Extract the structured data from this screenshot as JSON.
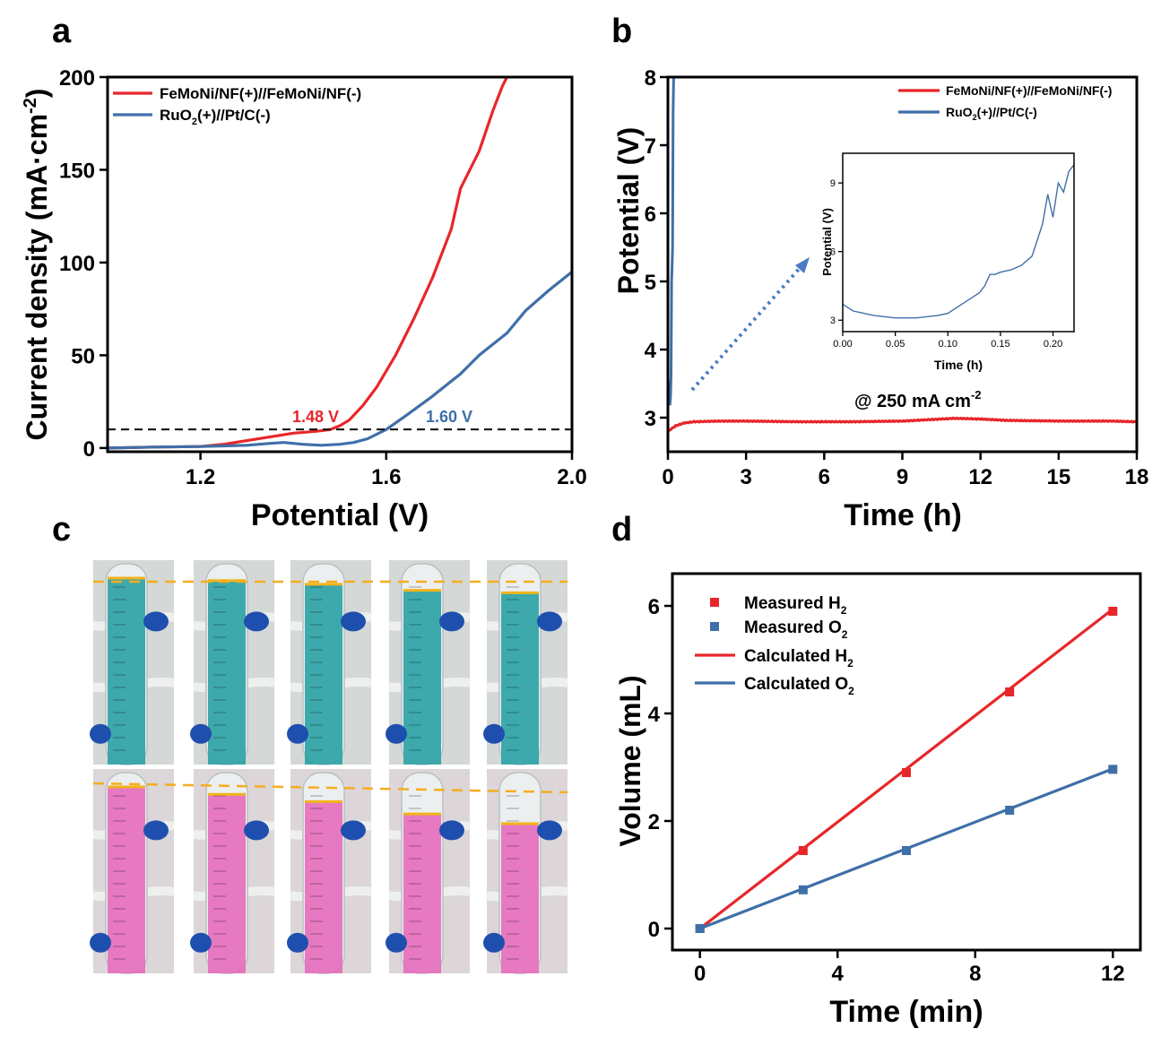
{
  "panels": {
    "a": "a",
    "b": "b",
    "c": "c",
    "d": "d"
  },
  "chart_data": [
    {
      "panel": "a",
      "type": "line",
      "xlabel": "Potential (V)",
      "ylabel": "Current density (mA·cm-2)",
      "ylabel_main": "Current density (mA·cm",
      "ylabel_sup": "-2",
      "ylabel_close": ")",
      "xlim": [
        1.0,
        2.0
      ],
      "ylim": [
        -2,
        200
      ],
      "xticks": [
        1.2,
        1.6,
        2.0
      ],
      "xtick_labels": [
        "1.2",
        "1.6",
        "2.0"
      ],
      "yticks": [
        0,
        50,
        100,
        150,
        200
      ],
      "ytick_labels": [
        "0",
        "50",
        "100",
        "150",
        "200"
      ],
      "reference_line": 10,
      "annotations": [
        {
          "text": "1.48 V",
          "x": 1.48,
          "y": 10,
          "color": "#e8262a"
        },
        {
          "text": "1.60 V",
          "x": 1.6,
          "y": 10,
          "color": "#3f6fa8"
        }
      ],
      "series": [
        {
          "name": "FeMoNi/NF(+)//FeMoNi/NF(-)",
          "legend_text": "FeMoNi/NF(+)//FeMoNi/NF(-)",
          "color": "#e8262a",
          "x": [
            1.0,
            1.1,
            1.2,
            1.25,
            1.3,
            1.35,
            1.4,
            1.45,
            1.48,
            1.5,
            1.52,
            1.55,
            1.58,
            1.62,
            1.66,
            1.7,
            1.74,
            1.76,
            1.77,
            1.8,
            1.83,
            1.85,
            1.86
          ],
          "y": [
            0,
            0.5,
            0.8,
            2,
            4,
            6,
            8,
            9,
            10,
            12,
            15,
            23,
            33,
            50,
            70,
            92,
            118,
            140,
            145,
            160,
            182,
            195,
            200
          ]
        },
        {
          "name": "RuO2(+)//Pt/C(-)",
          "legend_main": "RuO",
          "legend_sub": "2",
          "legend_rest": "(+)//Pt/C(-)",
          "color": "#3f6fa8",
          "x": [
            1.0,
            1.1,
            1.2,
            1.3,
            1.35,
            1.38,
            1.42,
            1.46,
            1.5,
            1.53,
            1.56,
            1.6,
            1.64,
            1.7,
            1.76,
            1.8,
            1.86,
            1.9,
            1.95,
            2.0
          ],
          "y": [
            0,
            0.5,
            0.8,
            1.5,
            2.5,
            3,
            2,
            1.5,
            2,
            3,
            5,
            10,
            17,
            28,
            40,
            50,
            62,
            74,
            85,
            95
          ]
        }
      ]
    },
    {
      "panel": "b",
      "type": "line",
      "xlabel": "Time (h)",
      "ylabel": "Potential (V)",
      "xlim": [
        0,
        18
      ],
      "ylim": [
        2.5,
        8
      ],
      "xticks": [
        0,
        3,
        6,
        9,
        12,
        15,
        18
      ],
      "xtick_labels": [
        "0",
        "3",
        "6",
        "9",
        "12",
        "15",
        "18"
      ],
      "yticks": [
        3,
        4,
        5,
        6,
        7,
        8
      ],
      "ytick_labels": [
        "3",
        "4",
        "5",
        "6",
        "7",
        "8"
      ],
      "annotation_main": "@ 250 mA cm",
      "annotation_sup": "-2",
      "series": [
        {
          "name": "FeMoNi/NF(+)//FeMoNi/NF(-)",
          "legend_text": "FeMoNi/NF(+)//FeMoNi/NF(-)",
          "color": "#e8262a",
          "x": [
            0,
            0.3,
            0.6,
            1,
            2,
            3,
            5,
            7,
            9,
            10,
            11,
            12,
            13,
            15,
            17,
            18
          ],
          "y": [
            2.8,
            2.88,
            2.92,
            2.94,
            2.95,
            2.95,
            2.94,
            2.94,
            2.95,
            2.97,
            2.99,
            2.98,
            2.96,
            2.95,
            2.95,
            2.94
          ]
        },
        {
          "name": "RuO2(+)//Pt/C(-)",
          "legend_main": "RuO",
          "legend_sub": "2",
          "legend_rest": "(+)//Pt/C(-)",
          "color": "#3f6fa8",
          "x": [
            0.0,
            0.02,
            0.05,
            0.08,
            0.1,
            0.12,
            0.14,
            0.16,
            0.18,
            0.2,
            0.22
          ],
          "y": [
            3.6,
            3.4,
            3.2,
            3.2,
            3.3,
            3.6,
            5.0,
            5.2,
            5.5,
            7.5,
            8.0
          ]
        }
      ],
      "inset": {
        "xlabel": "Time (h)",
        "ylabel": "Potential (V)",
        "xlim": [
          0,
          0.22
        ],
        "ylim": [
          2.5,
          10.3
        ],
        "xticks": [
          0,
          0.05,
          0.1,
          0.15,
          0.2
        ],
        "xtick_labels": [
          "0.00",
          "0.05",
          "0.10",
          "0.15",
          "0.20"
        ],
        "yticks": [
          3,
          6,
          9
        ],
        "ytick_labels": [
          "3",
          "6",
          "9"
        ],
        "color": "#3f6fa8",
        "x": [
          0.0,
          0.01,
          0.03,
          0.05,
          0.07,
          0.09,
          0.1,
          0.11,
          0.12,
          0.13,
          0.135,
          0.14,
          0.145,
          0.15,
          0.16,
          0.17,
          0.18,
          0.185,
          0.19,
          0.195,
          0.2,
          0.205,
          0.21,
          0.215,
          0.22
        ],
        "y": [
          3.7,
          3.4,
          3.2,
          3.1,
          3.1,
          3.2,
          3.3,
          3.6,
          3.9,
          4.2,
          4.5,
          5.0,
          5.0,
          5.1,
          5.2,
          5.4,
          5.8,
          6.5,
          7.2,
          8.5,
          7.5,
          9.0,
          8.6,
          9.5,
          9.8
        ]
      }
    },
    {
      "panel": "d",
      "type": "scatter",
      "xlabel": "Time (min)",
      "ylabel": "Volume (mL)",
      "xlim": [
        -0.8,
        12.8
      ],
      "ylim": [
        -0.4,
        6.6
      ],
      "xticks": [
        0,
        4,
        8,
        12
      ],
      "xtick_labels": [
        "0",
        "4",
        "8",
        "12"
      ],
      "yticks": [
        0,
        2,
        4,
        6
      ],
      "ytick_labels": [
        "0",
        "2",
        "4",
        "6"
      ],
      "series": [
        {
          "name": "Measured H2",
          "legend_main": "Measured H",
          "legend_sub": "2",
          "kind": "marker",
          "color": "#e8262a",
          "x": [
            0,
            3,
            6,
            9,
            12
          ],
          "y": [
            0,
            1.45,
            2.9,
            4.4,
            5.9
          ]
        },
        {
          "name": "Measured O2",
          "legend_main": "Measured O",
          "legend_sub": "2",
          "kind": "marker",
          "color": "#3f6fa8",
          "x": [
            0,
            3,
            6,
            9,
            12
          ],
          "y": [
            0,
            0.72,
            1.45,
            2.2,
            2.96
          ]
        },
        {
          "name": "Calculated H2",
          "legend_main": "Calculated H",
          "legend_sub": "2",
          "kind": "line",
          "color": "#e8262a",
          "x": [
            0,
            12
          ],
          "y": [
            0,
            5.94
          ]
        },
        {
          "name": "Calculated O2",
          "legend_main": "Calculated O",
          "legend_sub": "2",
          "kind": "line",
          "color": "#3f6fa8",
          "x": [
            0,
            12
          ],
          "y": [
            0,
            2.97
          ]
        }
      ]
    }
  ],
  "photos": {
    "top_row": {
      "label": "blue solution (O2 side) gas collection tubes",
      "color": "#2fa3a6",
      "levels": [
        0.0,
        0.02,
        0.05,
        0.1,
        0.12
      ]
    },
    "bottom_row": {
      "label": "pink solution (H2 side) gas collection tubes",
      "color": "#e56fbd",
      "levels": [
        0.0,
        0.06,
        0.12,
        0.22,
        0.3
      ]
    }
  }
}
